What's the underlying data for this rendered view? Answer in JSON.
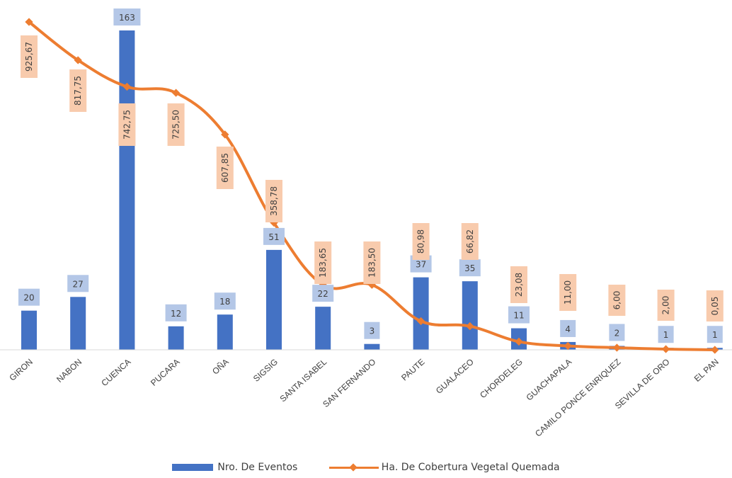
{
  "chart_data": {
    "type": "bar",
    "categories": [
      "GIRON",
      "NABON",
      "CUENCA",
      "PUCARA",
      "OÑA",
      "SIGSIG",
      "SANTA ISABEL",
      "SAN FERNANDO",
      "PAUTE",
      "GUALACEO",
      "CHORDELEG",
      "GUACHAPALA",
      "CAMILO PONCE ENRIQUEZ",
      "SEVILLA DE ORO",
      "EL PAN"
    ],
    "series": [
      {
        "name": "Nro. De Eventos",
        "type": "bar",
        "values": [
          20,
          27,
          163,
          12,
          18,
          51,
          22,
          3,
          37,
          35,
          11,
          4,
          2,
          1,
          1
        ],
        "labels": [
          "20",
          "27",
          "163",
          "12",
          "18",
          "51",
          "22",
          "3",
          "37",
          "35",
          "11",
          "4",
          "2",
          "1",
          "1"
        ],
        "color": "#4472c4"
      },
      {
        "name": "Ha. De Cobertura Vegetal Quemada",
        "type": "line",
        "values": [
          925.67,
          817.75,
          742.75,
          725.5,
          607.85,
          358.78,
          183.65,
          183.5,
          80.98,
          66.82,
          23.08,
          11.0,
          6.0,
          2.0,
          0.05
        ],
        "labels": [
          "925,67",
          "817,75",
          "742,75",
          "725,50",
          "607,85",
          "358,78",
          "183,65",
          "183,50",
          "80,98",
          "66,82",
          "23,08",
          "11,00",
          "6,00",
          "2,00",
          "0,05"
        ],
        "color": "#ed7d31"
      }
    ],
    "ylim_bars": [
      0,
      170
    ],
    "grid": false,
    "legend": "bottom"
  },
  "legend": {
    "bars_label": "Nro. De Eventos",
    "line_label": "Ha. De Cobertura Vegetal Quemada"
  }
}
